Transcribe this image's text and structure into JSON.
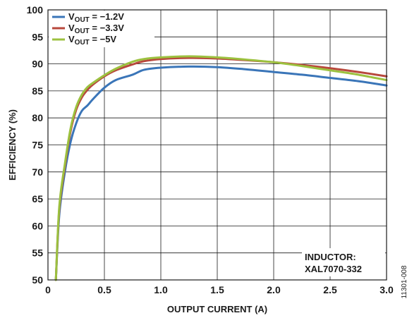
{
  "chart_data": {
    "type": "line",
    "title": "",
    "xlabel": "OUTPUT CURRENT (A)",
    "ylabel": "EFFICIENCY (%)",
    "xlim": [
      0,
      3.0
    ],
    "ylim": [
      50,
      100
    ],
    "xticks": [
      "0",
      "0.5",
      "1.0",
      "1.5",
      "2.0",
      "2.5",
      "3.0"
    ],
    "yticks": [
      "50",
      "55",
      "60",
      "65",
      "70",
      "75",
      "80",
      "85",
      "90",
      "95",
      "100"
    ],
    "grid": true,
    "legend_position": "top-left",
    "annotation": [
      "INDUCTOR:",
      "XAL7070-332"
    ],
    "figure_id": "11301-008",
    "series": [
      {
        "name": "VOUT = −1.2V",
        "legend": {
          "main": "V",
          "sub": "OUT",
          "rest": " = −1.2V"
        },
        "color": "#3a75b8",
        "x": [
          0.07,
          0.1,
          0.15,
          0.2,
          0.25,
          0.3,
          0.35,
          0.4,
          0.5,
          0.6,
          0.75,
          0.85,
          1.0,
          1.25,
          1.5,
          1.75,
          2.0,
          2.25,
          2.5,
          2.75,
          3.0
        ],
        "y": [
          50,
          62,
          70,
          75.5,
          79,
          81.3,
          82.3,
          83.5,
          85.6,
          87.0,
          88.0,
          88.9,
          89.3,
          89.5,
          89.4,
          89.0,
          88.5,
          88.0,
          87.4,
          86.8,
          86.0
        ]
      },
      {
        "name": "VOUT = −3.3V",
        "legend": {
          "main": "V",
          "sub": "OUT",
          "rest": " = −3.3V"
        },
        "color": "#b8483c",
        "x": [
          0.07,
          0.1,
          0.15,
          0.2,
          0.25,
          0.3,
          0.35,
          0.4,
          0.5,
          0.6,
          0.75,
          0.85,
          1.0,
          1.25,
          1.5,
          1.75,
          2.0,
          2.25,
          2.5,
          2.75,
          3.0
        ],
        "y": [
          50,
          63,
          71,
          77.5,
          81.5,
          83.8,
          85.2,
          86.2,
          87.7,
          88.8,
          89.9,
          90.5,
          90.9,
          91.1,
          91.0,
          90.7,
          90.3,
          89.8,
          89.2,
          88.5,
          87.7
        ]
      },
      {
        "name": "VOUT = −5V",
        "legend": {
          "main": "V",
          "sub": "OUT",
          "rest": " = −5V"
        },
        "color": "#9cc13f",
        "x": [
          0.07,
          0.1,
          0.15,
          0.2,
          0.25,
          0.3,
          0.35,
          0.4,
          0.5,
          0.6,
          0.75,
          0.85,
          1.0,
          1.25,
          1.5,
          1.75,
          2.0,
          2.25,
          2.5,
          2.75,
          3.0
        ],
        "y": [
          50,
          63.5,
          71.5,
          78,
          82,
          84.3,
          85.7,
          86.5,
          87.9,
          89.1,
          90.4,
          90.9,
          91.2,
          91.4,
          91.2,
          90.8,
          90.3,
          89.6,
          88.8,
          88.0,
          87.0
        ]
      }
    ]
  }
}
